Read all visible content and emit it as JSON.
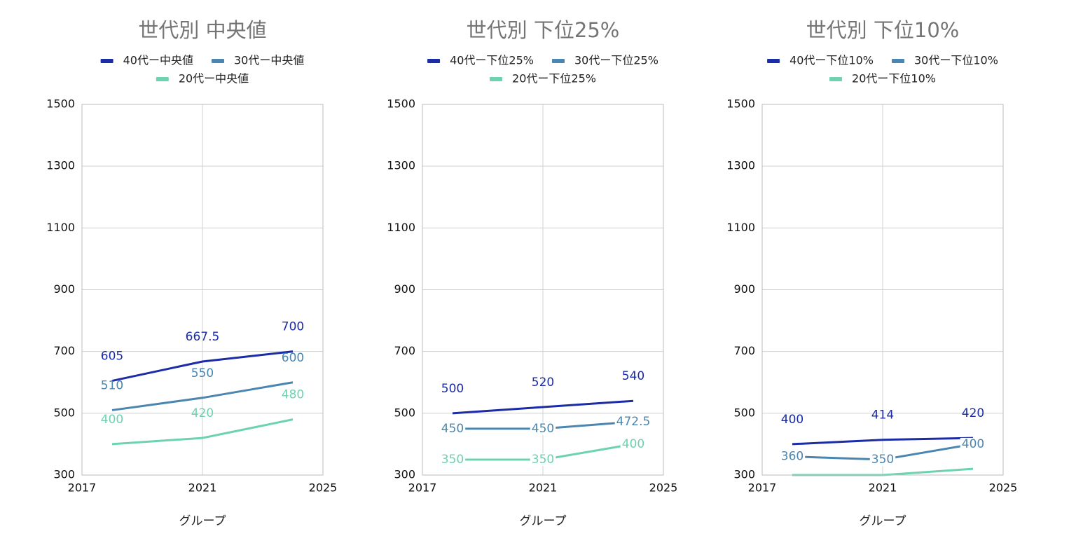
{
  "chart_data": [
    {
      "type": "line",
      "title": "世代別 中央値",
      "x_label": "グループ",
      "x": [
        2018,
        2021,
        2024
      ],
      "xlim": [
        2017,
        2025
      ],
      "xticks": [
        2017,
        2021,
        2025
      ],
      "ylim": [
        300,
        1500
      ],
      "yticks": [
        300,
        500,
        700,
        900,
        1100,
        1300,
        1500
      ],
      "grid": true,
      "series": [
        {
          "name": "40代ー中央値",
          "color": "#1b2ca6",
          "values": [
            605,
            667.5,
            700
          ],
          "data_labels": true
        },
        {
          "name": "30代ー中央値",
          "color": "#4a86b0",
          "values": [
            510,
            550,
            600
          ],
          "data_labels": true
        },
        {
          "name": "20代ー中央値",
          "color": "#6dd3ae",
          "values": [
            400,
            420,
            480
          ],
          "data_labels": true
        }
      ]
    },
    {
      "type": "line",
      "title": "世代別 下位25%",
      "x_label": "グループ",
      "x": [
        2018,
        2021,
        2024
      ],
      "xlim": [
        2017,
        2025
      ],
      "xticks": [
        2017,
        2021,
        2025
      ],
      "ylim": [
        300,
        1500
      ],
      "yticks": [
        300,
        500,
        700,
        900,
        1100,
        1300,
        1500
      ],
      "grid": true,
      "series": [
        {
          "name": "40代ー下位25%",
          "color": "#1b2ca6",
          "values": [
            500,
            520,
            540
          ],
          "data_labels": true
        },
        {
          "name": "30代ー下位25%",
          "color": "#4a86b0",
          "values": [
            450,
            450,
            472.5
          ],
          "data_labels": true
        },
        {
          "name": "20代ー下位25%",
          "color": "#6dd3ae",
          "values": [
            350,
            350,
            400
          ],
          "data_labels": true
        }
      ]
    },
    {
      "type": "line",
      "title": "世代別 下位10%",
      "x_label": "グループ",
      "x": [
        2018,
        2021,
        2024
      ],
      "xlim": [
        2017,
        2025
      ],
      "xticks": [
        2017,
        2021,
        2025
      ],
      "ylim": [
        300,
        1500
      ],
      "yticks": [
        300,
        500,
        700,
        900,
        1100,
        1300,
        1500
      ],
      "grid": true,
      "series": [
        {
          "name": "40代ー下位10%",
          "color": "#1b2ca6",
          "values": [
            400,
            414,
            420
          ],
          "data_labels": true
        },
        {
          "name": "30代ー下位10%",
          "color": "#4a86b0",
          "values": [
            360,
            350,
            400
          ],
          "data_labels": true
        },
        {
          "name": "20代ー下位10%",
          "color": "#6dd3ae",
          "values": [
            300,
            300,
            320
          ],
          "data_labels": false
        }
      ]
    }
  ]
}
